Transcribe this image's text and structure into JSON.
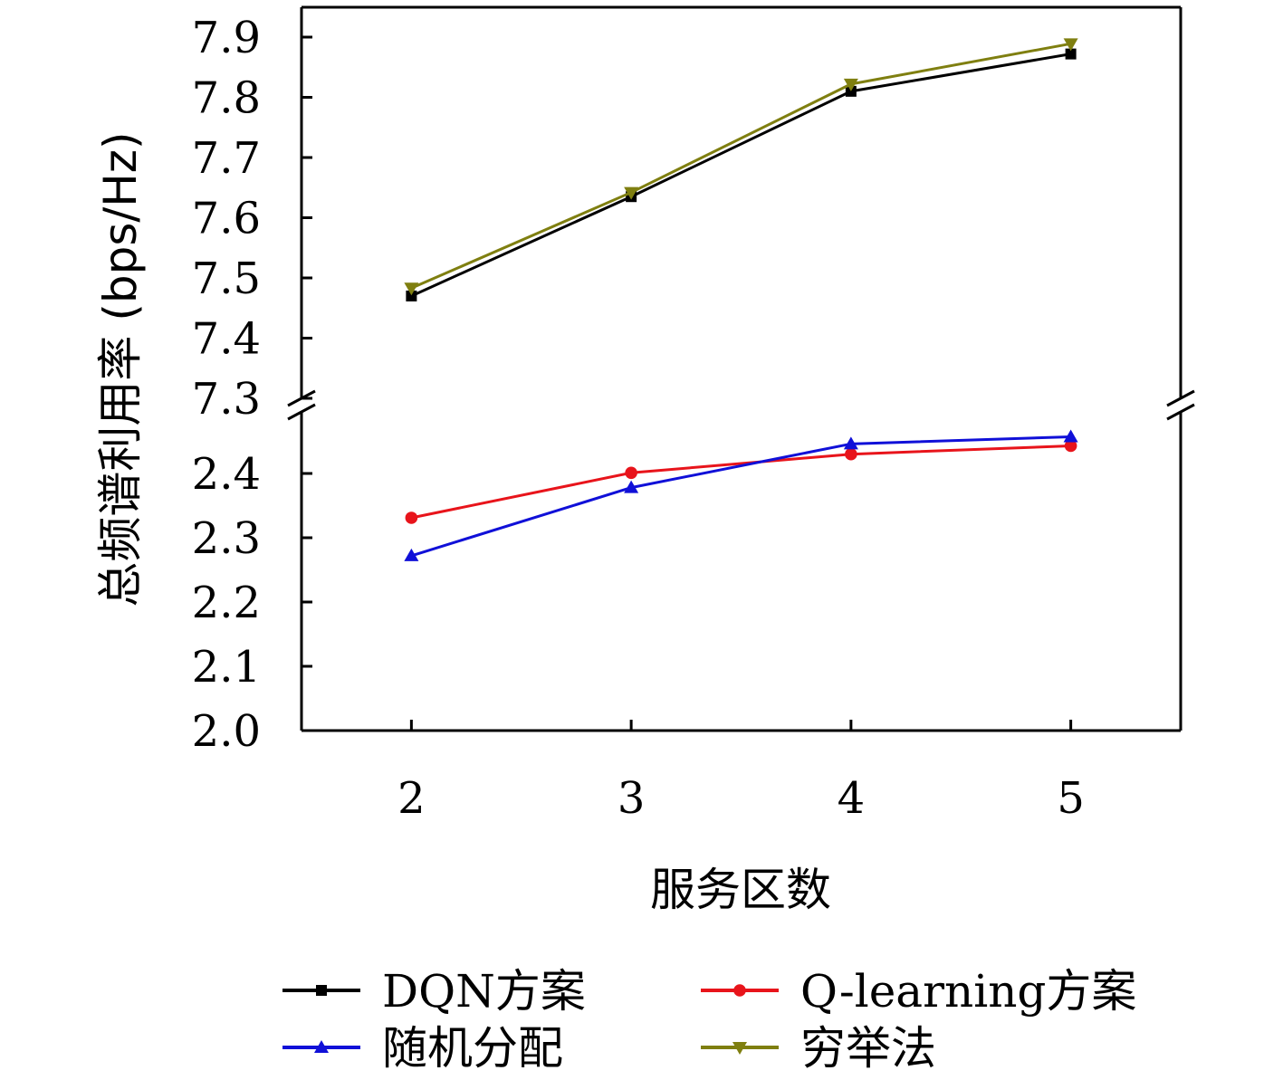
{
  "chart_data": {
    "type": "line",
    "title": "",
    "xlabel": "服务区数",
    "ylabel": "总频谱利用率 (bps/Hz)",
    "x": [
      2,
      3,
      4,
      5
    ],
    "xlim": [
      1.5,
      5.5
    ],
    "x_ticks": [
      "2",
      "3",
      "4",
      "5"
    ],
    "y_axis_break": true,
    "upper_ylim": [
      7.3,
      7.9
    ],
    "upper_y_ticks": [
      "7.3",
      "7.4",
      "7.5",
      "7.6",
      "7.7",
      "7.8",
      "7.9"
    ],
    "lower_ylim": [
      2.0,
      2.48
    ],
    "lower_y_ticks": [
      "2.0",
      "2.1",
      "2.2",
      "2.3",
      "2.4"
    ],
    "grid": false,
    "legend_position": "bottom",
    "series": [
      {
        "name": "DQN方案",
        "values": [
          7.47,
          7.635,
          7.81,
          7.872
        ],
        "color": "#000000",
        "marker": "square",
        "panel": "upper"
      },
      {
        "name": "Q-learning方案",
        "values": [
          2.331,
          2.401,
          2.43,
          2.443
        ],
        "color": "#e8141b",
        "marker": "circle",
        "panel": "lower"
      },
      {
        "name": "随机分配",
        "values": [
          2.272,
          2.378,
          2.446,
          2.457
        ],
        "color": "#1010d8",
        "marker": "triangle-up",
        "panel": "lower"
      },
      {
        "name": "穷举法",
        "values": [
          7.483,
          7.642,
          7.822,
          7.889
        ],
        "color": "#7f7f10",
        "marker": "triangle-down",
        "panel": "upper"
      }
    ]
  }
}
